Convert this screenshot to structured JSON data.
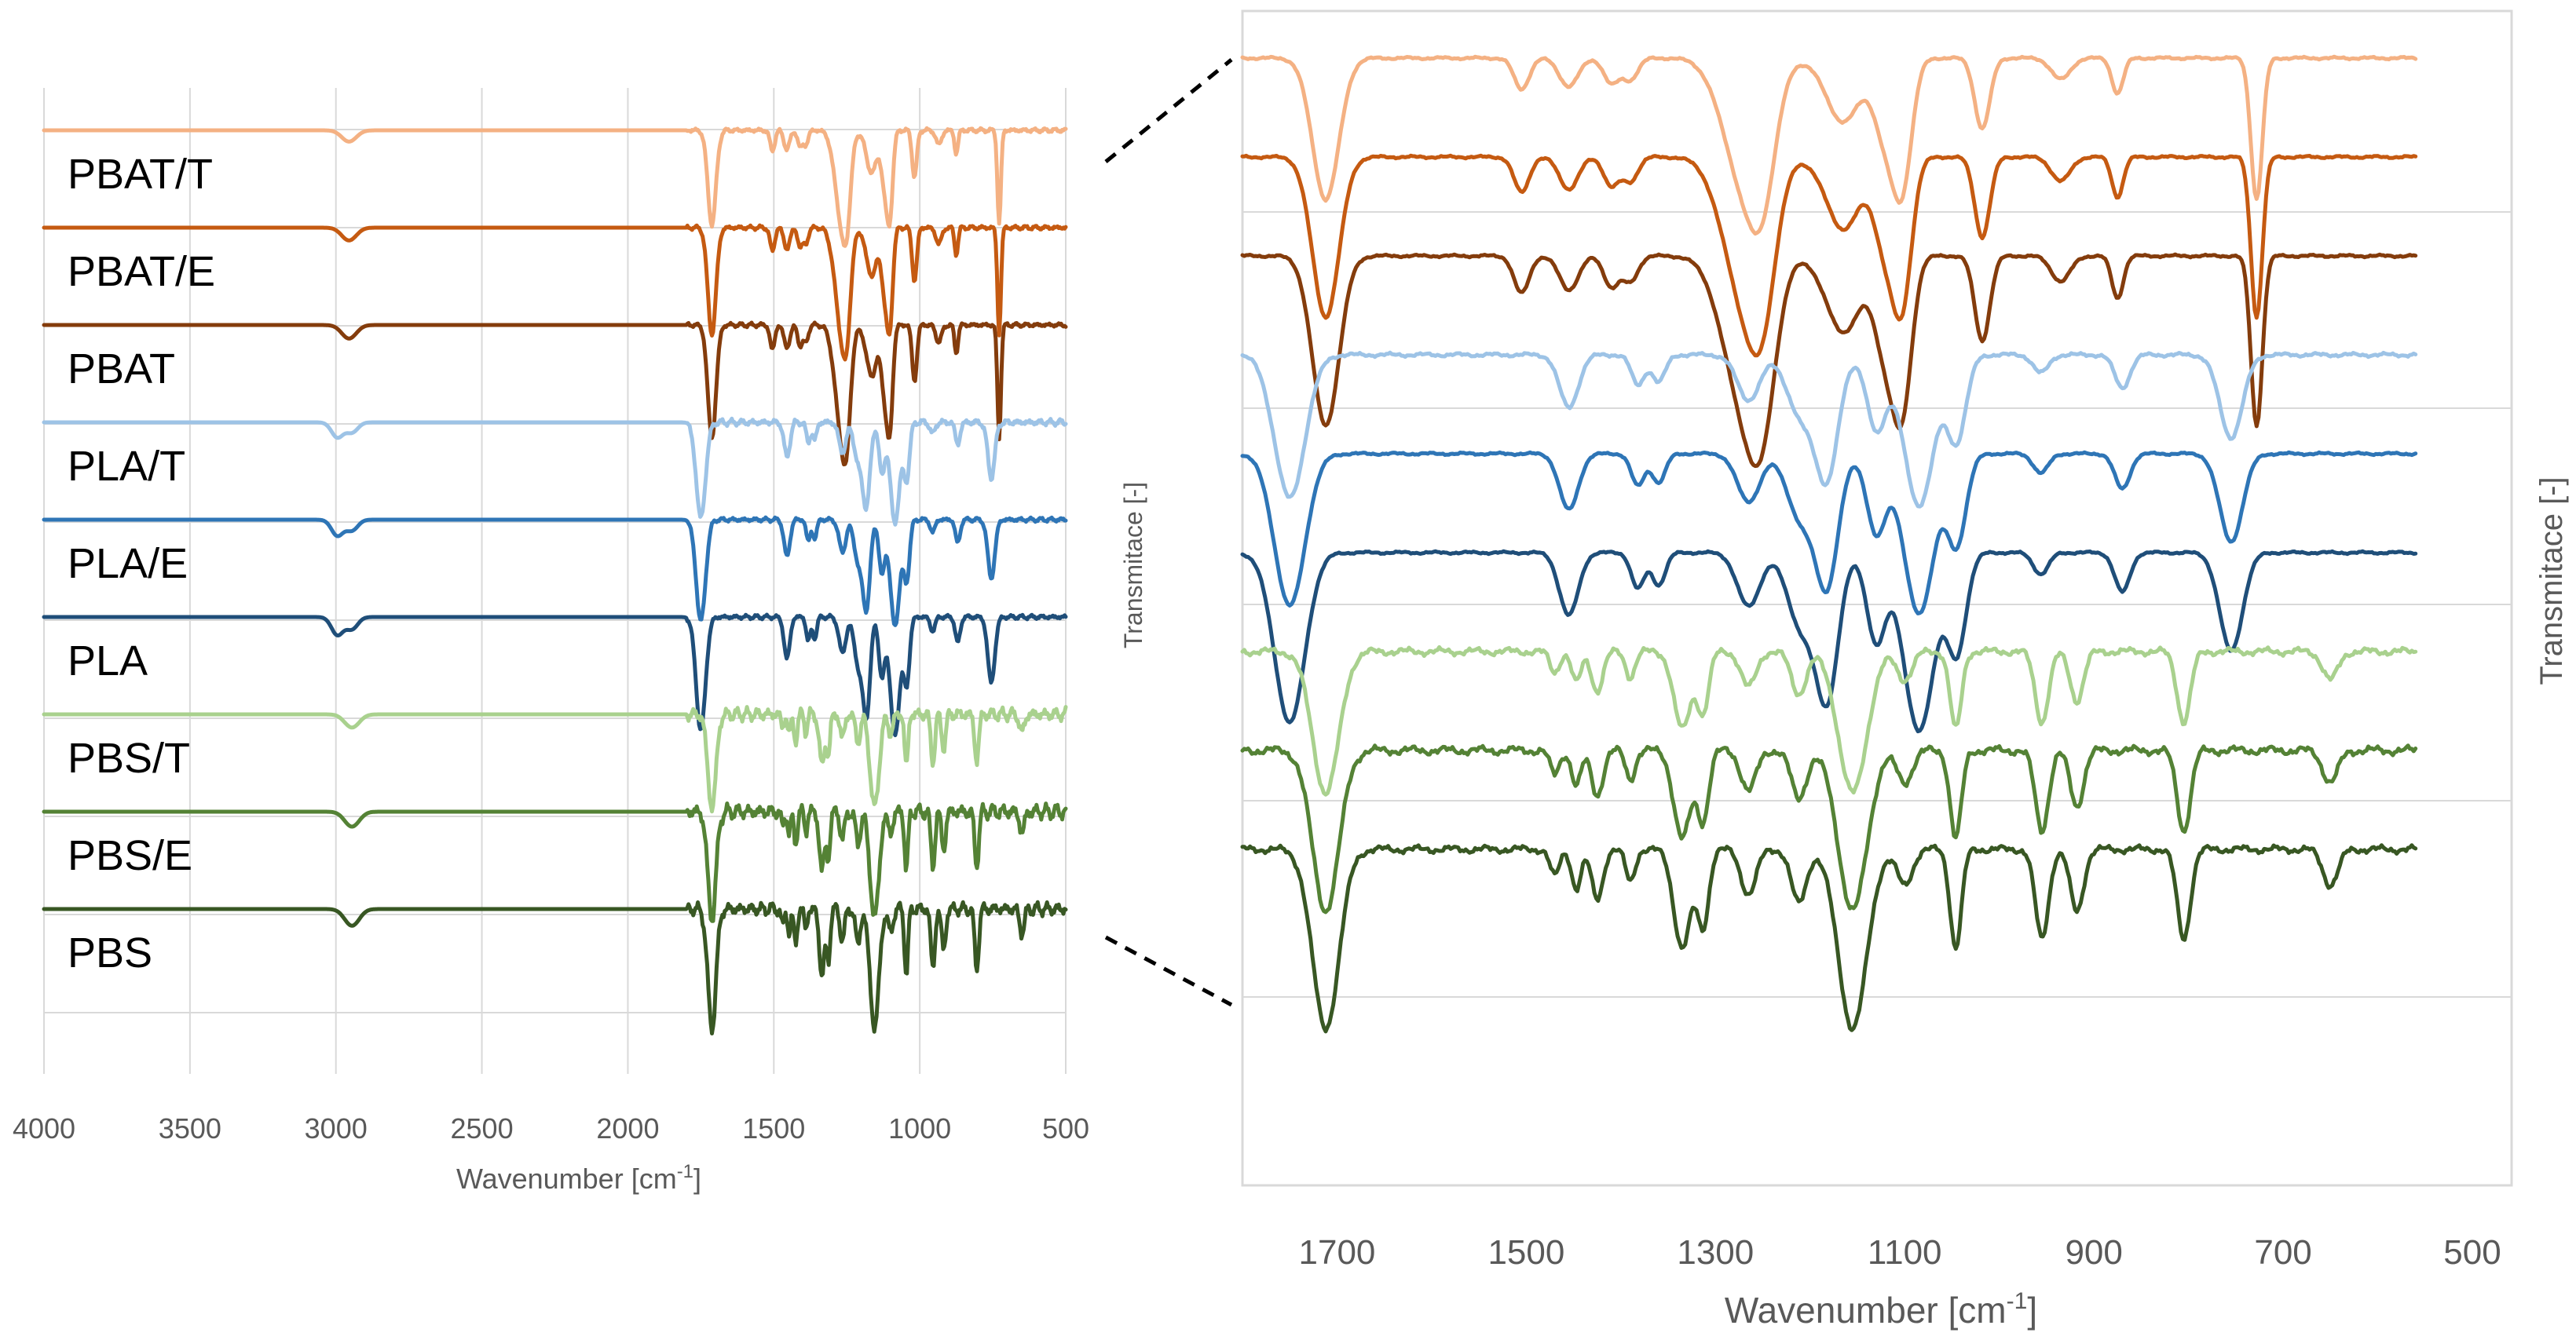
{
  "chart_data": [
    {
      "type": "line",
      "panel": "full-spectrum",
      "xlabel": "Wavenumber [cm",
      "xlabel_sup": "-1",
      "xlabel_suffix": "]",
      "ylabel": "Transmitace [-]",
      "xlim": [
        4000,
        500
      ],
      "x_reversed": true,
      "x_ticks": [
        "4000",
        "3500",
        "3000",
        "2500",
        "2000",
        "1500",
        "1000",
        "500"
      ],
      "grid": true,
      "legend": "inline-labels-left",
      "series": [
        {
          "name": "PBAT/T",
          "color": "#f4b183"
        },
        {
          "name": "PBAT/E",
          "color": "#c55a11"
        },
        {
          "name": "PBAT",
          "color": "#843c0c"
        },
        {
          "name": "PLA/T",
          "color": "#9dc3e6"
        },
        {
          "name": "PLA/E",
          "color": "#2e75b6"
        },
        {
          "name": "PLA",
          "color": "#1f4e79"
        },
        {
          "name": "PBS/T",
          "color": "#a9d18e"
        },
        {
          "name": "PBS/E",
          "color": "#548235"
        },
        {
          "name": "PBS",
          "color": "#385723"
        }
      ]
    },
    {
      "type": "line",
      "panel": "fingerprint-zoom",
      "xlabel": "Wavenumber [cm",
      "xlabel_sup": "-1",
      "xlabel_suffix": "]",
      "ylabel": "Transmitace [-]",
      "xlim": [
        1800,
        500
      ],
      "x_reversed": true,
      "x_ticks": [
        "1700",
        "1500",
        "1300",
        "1100",
        "900",
        "700",
        "500"
      ],
      "grid": true,
      "series_same_as_left": true
    }
  ],
  "spectra": {
    "PBAT": {
      "peaks": [
        [
          2955,
          0.12,
          25
        ],
        [
          1712,
          1.0,
          14
        ],
        [
          1505,
          0.22,
          8
        ],
        [
          1455,
          0.2,
          10
        ],
        [
          1410,
          0.18,
          8
        ],
        [
          1390,
          0.15,
          8
        ],
        [
          1270,
          0.85,
          22
        ],
        [
          1250,
          0.6,
          14
        ],
        [
          1165,
          0.45,
          18
        ],
        [
          1120,
          0.55,
          12
        ],
        [
          1102,
          0.8,
          10
        ],
        [
          1018,
          0.5,
          8
        ],
        [
          935,
          0.15,
          10
        ],
        [
          875,
          0.25,
          6
        ],
        [
          728,
          1.0,
          6
        ]
      ],
      "zoom_scale": 1.0
    },
    "PLA": {
      "peaks": [
        [
          2995,
          0.15,
          20
        ],
        [
          2945,
          0.1,
          20
        ],
        [
          1750,
          0.95,
          16
        ],
        [
          1455,
          0.35,
          10
        ],
        [
          1382,
          0.2,
          7
        ],
        [
          1360,
          0.18,
          7
        ],
        [
          1265,
          0.3,
          12
        ],
        [
          1210,
          0.4,
          14
        ],
        [
          1182,
          0.8,
          12
        ],
        [
          1130,
          0.5,
          10
        ],
        [
          1085,
          1.0,
          16
        ],
        [
          1045,
          0.55,
          10
        ],
        [
          956,
          0.12,
          8
        ],
        [
          870,
          0.22,
          8
        ],
        [
          755,
          0.55,
          12
        ]
      ],
      "zoom_scale": 1.0
    },
    "PBS": {
      "peaks": [
        [
          2945,
          0.14,
          25
        ],
        [
          1712,
          1.0,
          14
        ],
        [
          1470,
          0.15,
          5
        ],
        [
          1447,
          0.22,
          5
        ],
        [
          1425,
          0.28,
          6
        ],
        [
          1390,
          0.18,
          5
        ],
        [
          1335,
          0.55,
          9
        ],
        [
          1313,
          0.42,
          6
        ],
        [
          1265,
          0.25,
          8
        ],
        [
          1212,
          0.3,
          8
        ],
        [
          1155,
          1.0,
          15
        ],
        [
          1100,
          0.2,
          8
        ],
        [
          1046,
          0.55,
          6
        ],
        [
          955,
          0.5,
          7
        ],
        [
          918,
          0.35,
          7
        ],
        [
          805,
          0.5,
          7
        ],
        [
          650,
          0.2,
          8
        ]
      ],
      "zoom_scale": 1.0
    },
    "bands": {
      "left": {
        "PBAT/T": 0,
        "PBAT/E": 1,
        "PBAT": 2,
        "PLA/T": 3,
        "PLA/E": 4,
        "PLA": 5,
        "PBS/T": 6,
        "PBS/E": 7,
        "PBS": 8
      },
      "depth_factor": {
        "PBAT/T": 0.75,
        "PBAT/E": 0.85,
        "PBAT": 0.9,
        "PLA/T": 0.8,
        "PLA/E": 0.85,
        "PLA": 0.95,
        "PBS/T": 0.75,
        "PBS/E": 0.85,
        "PBS": 0.95
      },
      "noise": {
        "PBAT/T": 0.01,
        "PBAT/E": 0.01,
        "PBAT": 0.01,
        "PLA/T": 0.015,
        "PLA/E": 0.01,
        "PLA": 0.01,
        "PBS/T": 0.03,
        "PBS/E": 0.035,
        "PBS": 0.03
      }
    }
  }
}
